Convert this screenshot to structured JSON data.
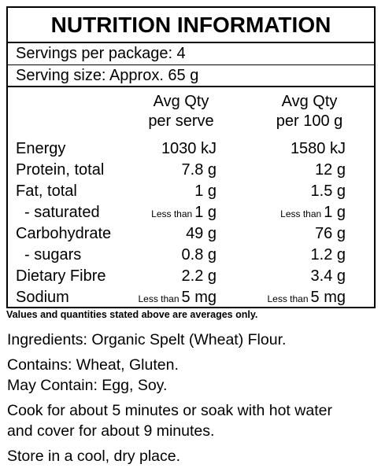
{
  "panel": {
    "title": "NUTRITION INFORMATION",
    "servings_per_package": "Servings per package: 4",
    "serving_size": "Serving size: Approx. 65 g",
    "columns": [
      {
        "line1": "Avg Qty",
        "line2": "per serve"
      },
      {
        "line1": "Avg Qty",
        "line2": "per 100 g"
      }
    ],
    "rows": [
      {
        "name": "Energy",
        "serve_prefix": "",
        "serve": "1030 kJ",
        "per100_prefix": "",
        "per100": "1580 kJ"
      },
      {
        "name": "Protein, total",
        "serve_prefix": "",
        "serve": "7.8 g",
        "per100_prefix": "",
        "per100": "12 g"
      },
      {
        "name": "Fat, total",
        "serve_prefix": "",
        "serve": "1 g",
        "per100_prefix": "",
        "per100": "1.5 g"
      },
      {
        "name": "- saturated",
        "serve_prefix": "Less than",
        "serve": "1 g",
        "per100_prefix": "Less than",
        "per100": "1 g"
      },
      {
        "name": "Carbohydrate",
        "serve_prefix": "",
        "serve": "49 g",
        "per100_prefix": "",
        "per100": "76 g"
      },
      {
        "name": "- sugars",
        "serve_prefix": "",
        "serve": "0.8 g",
        "per100_prefix": "",
        "per100": "1.2 g"
      },
      {
        "name": "Dietary Fibre",
        "serve_prefix": "",
        "serve": "2.2 g",
        "per100_prefix": "",
        "per100": "3.4 g"
      },
      {
        "name": "Sodium",
        "serve_prefix": "Less than",
        "serve": "5 mg",
        "per100_prefix": "Less than",
        "per100": "5 mg"
      }
    ]
  },
  "note": "Values and quantities stated above are averages only.",
  "ingredients": "Ingredients: Organic Spelt (Wheat) Flour.",
  "contains": "Contains: Wheat, Gluten.",
  "may_contain": "May Contain: Egg, Soy.",
  "cooking": {
    "line1": "Cook for about 5 minutes or soak with hot water",
    "line2": "and cover for about 9 minutes."
  },
  "storage": "Store in a cool, dry place."
}
